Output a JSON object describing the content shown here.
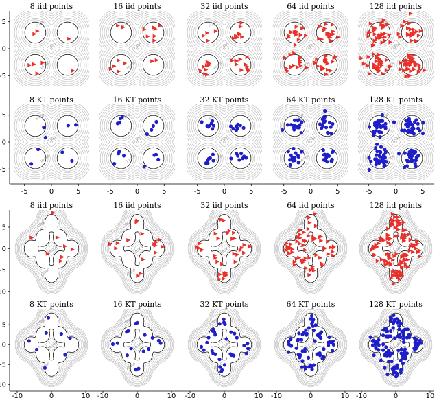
{
  "chart_data": {
    "type": "scatter",
    "title": "iid vs kernel thinning (KT) samples on mixture-of-Gaussians contours",
    "series_styles": {
      "iid": {
        "marker": "triangle",
        "color": "#e8312a"
      },
      "KT": {
        "marker": "circle",
        "color": "#1f1fc8"
      }
    },
    "row_labels": {
      "iid": [
        "8 iid points",
        "16 iid points",
        "32 iid points",
        "64 iid points",
        "128 iid points"
      ],
      "kt": [
        "8 KT points",
        "16 KT points",
        "32 KT points",
        "64 KT points",
        "128 KT points"
      ]
    },
    "sample_sizes": [
      8,
      16,
      32,
      64,
      128
    ],
    "top_block": {
      "mixture": "4 Gaussian components",
      "component_centers": [
        [
          -3,
          3
        ],
        [
          3,
          3
        ],
        [
          -3,
          -3
        ],
        [
          3,
          -3
        ]
      ],
      "xlim": [
        -7,
        7
      ],
      "ylim": [
        -7,
        7
      ],
      "xticks": [
        "-5",
        "0",
        "5"
      ],
      "yticks": [
        "5",
        "0",
        "-5"
      ],
      "contour_labels": [
        "-5.000",
        "-7.500",
        "-10.000"
      ]
    },
    "bottom_block": {
      "mixture": "8 Gaussian components",
      "component_centers": [
        [
          0,
          6
        ],
        [
          0,
          -6
        ],
        [
          -2.5,
          2.5
        ],
        [
          2.5,
          2.5
        ],
        [
          -2.5,
          -2.5
        ],
        [
          2.5,
          -2.5
        ],
        [
          -6,
          0
        ],
        [
          6,
          0
        ]
      ],
      "xlim": [
        -11,
        11
      ],
      "ylim": [
        -11,
        9
      ],
      "xticks": [
        "-10",
        "0",
        "10"
      ],
      "yticks": [
        "5",
        "0",
        "-5",
        "-10"
      ],
      "contour_labels": [
        "-7.500",
        "-10.000",
        "-12.500"
      ]
    }
  }
}
